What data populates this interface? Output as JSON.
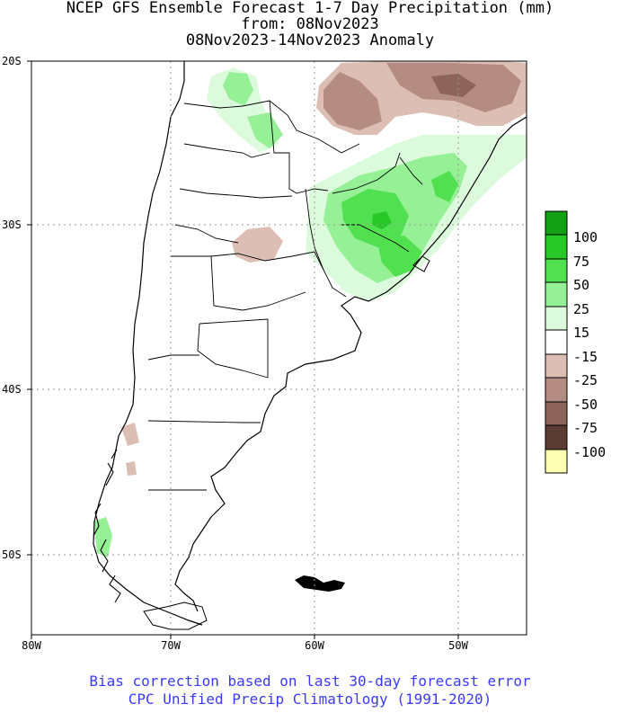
{
  "header": {
    "line1": "NCEP GFS Ensemble Forecast 1-7 Day Precipitation (mm)",
    "line2": "from: 08Nov2023",
    "line3": "08Nov2023-14Nov2023 Anomaly"
  },
  "axes": {
    "lat_labels": [
      "20S",
      "30S",
      "40S",
      "50S"
    ],
    "lon_labels": [
      "80W",
      "70W",
      "60W",
      "50W"
    ]
  },
  "legend": {
    "labels": [
      "100",
      "75",
      "50",
      "25",
      "15",
      "-15",
      "-25",
      "-50",
      "-75",
      "-100"
    ],
    "colors": [
      "#14a014",
      "#28c828",
      "#50e050",
      "#96f096",
      "#dcfadc",
      "#ffffff",
      "#dcbeb4",
      "#b48c82",
      "#8c645a",
      "#5a3c32",
      "#ffffb4"
    ]
  },
  "footer": {
    "line1": "Bias correction based on last 30-day forecast error",
    "line2": "CPC Unified Precip Climatology (1991-2020)"
  },
  "map": {
    "region": "Southern South America",
    "lat_range": [
      "20S",
      "55S"
    ],
    "lon_range": [
      "80W",
      "45W"
    ],
    "grid_dotted": true,
    "colors": {
      "wet_light": "#dcfadc",
      "wet_mid": "#96f096",
      "wet_strong": "#50e050",
      "dry_light": "#dcbeb4",
      "dry_mid": "#b48c82",
      "dry_strong": "#8c645a",
      "dry_max": "#5a3c32"
    }
  }
}
